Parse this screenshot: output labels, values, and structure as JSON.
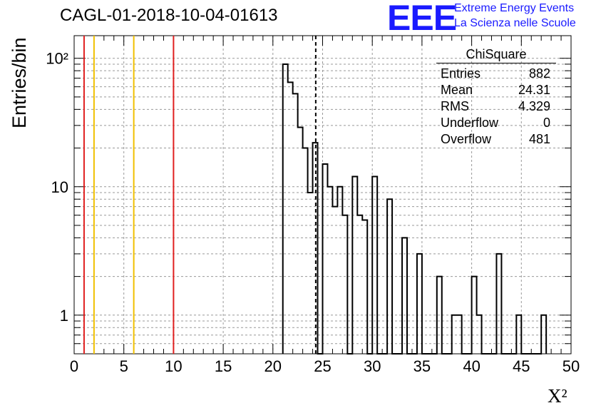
{
  "title": "CAGL-01-2018-10-04-01613",
  "logo": {
    "mark": "EEE",
    "line1": "Extreme Energy Events",
    "line2": "La Scienza nelle Scuole",
    "color": "#1a1aff"
  },
  "stats": {
    "title": "ChiSquare",
    "rows": [
      {
        "label": "Entries",
        "value": "882"
      },
      {
        "label": "Mean",
        "value": "24.31"
      },
      {
        "label": "RMS",
        "value": "4.329"
      },
      {
        "label": "Underflow",
        "value": "0"
      },
      {
        "label": "Overflow",
        "value": "481"
      }
    ]
  },
  "chart_data": {
    "type": "histogram",
    "ylabel": "Entries/bin",
    "xlabel": "X²",
    "xlim": [
      0,
      50
    ],
    "ylim": [
      0.5,
      150
    ],
    "yscale": "log",
    "grid": true,
    "bin_width": 0.5,
    "x_ticks": [
      0,
      5,
      10,
      15,
      20,
      25,
      30,
      35,
      40,
      45,
      50
    ],
    "y_ticks": [
      {
        "value": 1,
        "label": "1"
      },
      {
        "value": 10,
        "label": "10"
      },
      {
        "value": 100,
        "label": "10²"
      }
    ],
    "bins": [
      {
        "x": 21.0,
        "y": 90
      },
      {
        "x": 21.5,
        "y": 65
      },
      {
        "x": 22.0,
        "y": 53
      },
      {
        "x": 22.5,
        "y": 29
      },
      {
        "x": 23.0,
        "y": 20
      },
      {
        "x": 23.5,
        "y": 9
      },
      {
        "x": 24.0,
        "y": 22
      },
      {
        "x": 24.5,
        "y": 0
      },
      {
        "x": 25.0,
        "y": 15
      },
      {
        "x": 25.5,
        "y": 10
      },
      {
        "x": 26.0,
        "y": 7
      },
      {
        "x": 26.5,
        "y": 10
      },
      {
        "x": 27.0,
        "y": 6
      },
      {
        "x": 27.5,
        "y": 0
      },
      {
        "x": 28.0,
        "y": 12
      },
      {
        "x": 28.5,
        "y": 6
      },
      {
        "x": 29.0,
        "y": 5.5
      },
      {
        "x": 29.5,
        "y": 0
      },
      {
        "x": 30.0,
        "y": 12
      },
      {
        "x": 30.5,
        "y": 0
      },
      {
        "x": 31.0,
        "y": 0
      },
      {
        "x": 31.5,
        "y": 8
      },
      {
        "x": 32.0,
        "y": 0
      },
      {
        "x": 32.5,
        "y": 0
      },
      {
        "x": 33.0,
        "y": 4
      },
      {
        "x": 33.5,
        "y": 0
      },
      {
        "x": 34.0,
        "y": 0
      },
      {
        "x": 34.5,
        "y": 3
      },
      {
        "x": 35.0,
        "y": 0
      },
      {
        "x": 35.5,
        "y": 0
      },
      {
        "x": 36.0,
        "y": 0
      },
      {
        "x": 36.5,
        "y": 2
      },
      {
        "x": 37.0,
        "y": 0
      },
      {
        "x": 37.5,
        "y": 0
      },
      {
        "x": 38.0,
        "y": 1
      },
      {
        "x": 38.5,
        "y": 1
      },
      {
        "x": 39.0,
        "y": 0
      },
      {
        "x": 39.5,
        "y": 0
      },
      {
        "x": 40.0,
        "y": 2
      },
      {
        "x": 40.5,
        "y": 1
      },
      {
        "x": 41.0,
        "y": 0
      },
      {
        "x": 41.5,
        "y": 0
      },
      {
        "x": 42.0,
        "y": 0
      },
      {
        "x": 42.5,
        "y": 3
      },
      {
        "x": 43.0,
        "y": 0
      },
      {
        "x": 43.5,
        "y": 0
      },
      {
        "x": 44.0,
        "y": 0
      },
      {
        "x": 44.5,
        "y": 1
      },
      {
        "x": 45.0,
        "y": 0
      },
      {
        "x": 45.5,
        "y": 0
      },
      {
        "x": 46.0,
        "y": 0
      },
      {
        "x": 46.5,
        "y": 0
      },
      {
        "x": 47.0,
        "y": 1
      }
    ],
    "vertical_lines": [
      {
        "x": 1,
        "color": "#e02020",
        "style": "solid"
      },
      {
        "x": 2,
        "color": "#f0c000",
        "style": "solid"
      },
      {
        "x": 6,
        "color": "#f0c000",
        "style": "solid"
      },
      {
        "x": 10,
        "color": "#e02020",
        "style": "solid"
      },
      {
        "x": 24.31,
        "color": "#000000",
        "style": "dashed"
      }
    ]
  }
}
